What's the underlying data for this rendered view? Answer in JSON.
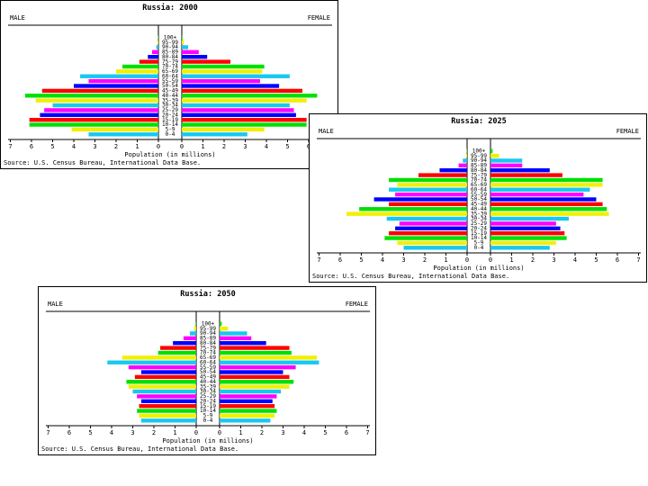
{
  "chart_data": [
    {
      "type": "bar",
      "title": "Russia: 2000",
      "male_label": "MALE",
      "female_label": "FEMALE",
      "xlabel": "Population (in millions)",
      "source": "Source: U.S. Census Bureau, International Data Base.",
      "ticks": [
        "7",
        "6",
        "5",
        "4",
        "3",
        "2",
        "1",
        "0",
        "0",
        "1",
        "2",
        "3",
        "4",
        "5",
        "6",
        "7"
      ],
      "categories": [
        "0-4",
        "5-9",
        "10-14",
        "15-19",
        "20-24",
        "25-29",
        "30-34",
        "35-39",
        "40-44",
        "45-49",
        "50-54",
        "55-59",
        "60-64",
        "65-69",
        "70-74",
        "75-79",
        "80-84",
        "85-89",
        "90-94",
        "95-99",
        "100+"
      ],
      "xlim": [
        0,
        7
      ],
      "series": [
        {
          "name": "MALE",
          "values": [
            3.3,
            4.1,
            6.1,
            6.1,
            5.6,
            5.4,
            5.0,
            5.8,
            6.3,
            5.5,
            4.0,
            3.3,
            3.7,
            2.0,
            1.7,
            0.9,
            0.5,
            0.3,
            0.1,
            0.05,
            0.02
          ]
        },
        {
          "name": "FEMALE",
          "values": [
            3.1,
            3.9,
            5.9,
            5.9,
            5.4,
            5.3,
            5.1,
            5.9,
            6.4,
            5.7,
            4.6,
            3.7,
            5.1,
            3.8,
            3.9,
            2.3,
            1.2,
            0.8,
            0.3,
            0.1,
            0.03
          ]
        }
      ]
    },
    {
      "type": "bar",
      "title": "Russia: 2025",
      "male_label": "MALE",
      "female_label": "FEMALE",
      "xlabel": "Population (in millions)",
      "source": "Source: U.S. Census Bureau, International Data Base.",
      "ticks": [
        "7",
        "6",
        "5",
        "4",
        "3",
        "2",
        "1",
        "0",
        "0",
        "1",
        "2",
        "3",
        "4",
        "5",
        "6",
        "7"
      ],
      "categories": [
        "0-4",
        "5-9",
        "10-14",
        "15-19",
        "20-24",
        "25-29",
        "30-34",
        "35-39",
        "40-44",
        "45-49",
        "50-54",
        "55-59",
        "60-64",
        "65-69",
        "70-74",
        "75-79",
        "80-84",
        "85-89",
        "90-94",
        "95-99",
        "100+"
      ],
      "xlim": [
        0,
        7
      ],
      "series": [
        {
          "name": "MALE",
          "values": [
            3.0,
            3.3,
            3.9,
            3.7,
            3.4,
            3.2,
            3.8,
            5.7,
            5.1,
            3.7,
            4.4,
            3.4,
            3.7,
            3.3,
            3.7,
            2.3,
            1.3,
            0.4,
            0.2,
            0.05,
            0.02
          ]
        },
        {
          "name": "FEMALE",
          "values": [
            2.8,
            3.1,
            3.6,
            3.5,
            3.3,
            3.1,
            3.7,
            5.6,
            5.5,
            5.3,
            5.0,
            4.4,
            4.7,
            5.3,
            5.3,
            3.4,
            2.8,
            1.5,
            1.5,
            0.4,
            0.1
          ]
        }
      ]
    },
    {
      "type": "bar",
      "title": "Russia: 2050",
      "male_label": "MALE",
      "female_label": "FEMALE",
      "xlabel": "Population (in millions)",
      "source": "Source: U.S. Census Bureau, International Data Base.",
      "ticks": [
        "7",
        "6",
        "5",
        "4",
        "3",
        "2",
        "1",
        "0",
        "0",
        "1",
        "2",
        "3",
        "4",
        "5",
        "6",
        "7"
      ],
      "categories": [
        "0-4",
        "5-9",
        "10-14",
        "15-19",
        "20-24",
        "25-29",
        "30-34",
        "35-39",
        "40-44",
        "45-49",
        "50-54",
        "55-59",
        "60-64",
        "65-69",
        "70-74",
        "75-79",
        "80-84",
        "85-89",
        "90-94",
        "95-99",
        "100+"
      ],
      "xlim": [
        0,
        7
      ],
      "series": [
        {
          "name": "MALE",
          "values": [
            2.6,
            2.7,
            2.8,
            2.7,
            2.6,
            2.8,
            3.0,
            3.2,
            3.3,
            2.9,
            2.6,
            3.2,
            4.2,
            3.5,
            1.8,
            1.7,
            1.1,
            0.6,
            0.3,
            0.1,
            0.03
          ]
        },
        {
          "name": "FEMALE",
          "values": [
            2.4,
            2.6,
            2.7,
            2.6,
            2.5,
            2.7,
            2.9,
            3.3,
            3.5,
            3.3,
            3.0,
            3.6,
            4.7,
            4.6,
            3.4,
            3.3,
            2.2,
            1.5,
            1.3,
            0.4,
            0.1
          ]
        }
      ]
    }
  ]
}
